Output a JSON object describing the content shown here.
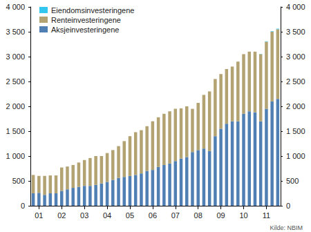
{
  "chart_data": {
    "type": "bar",
    "stacked": true,
    "grid": false,
    "legend": "top-left",
    "annotations": [
      "Kilde: NBIM"
    ],
    "categories": [
      null,
      "01",
      null,
      null,
      null,
      "02",
      null,
      null,
      null,
      "03",
      null,
      null,
      null,
      "04",
      null,
      null,
      null,
      "05",
      null,
      null,
      null,
      "06",
      null,
      null,
      null,
      "07",
      null,
      null,
      null,
      "08",
      null,
      null,
      null,
      "09",
      null,
      null,
      null,
      "10",
      null,
      null,
      null,
      "11",
      null,
      null
    ],
    "series": [
      {
        "name": "Aksjeinvesteringene",
        "color": "#4f7fb3",
        "values": [
          250,
          260,
          220,
          250,
          250,
          300,
          330,
          360,
          380,
          400,
          400,
          420,
          450,
          480,
          520,
          560,
          580,
          600,
          620,
          650,
          700,
          720,
          780,
          820,
          850,
          900,
          950,
          980,
          1080,
          1120,
          1150,
          1100,
          1400,
          1550,
          1650,
          1700,
          1700,
          1850,
          1900,
          1880,
          1700,
          1950,
          2100,
          2150
        ]
      },
      {
        "name": "Renteinvesteringene",
        "color": "#b3a272",
        "values": [
          370,
          340,
          380,
          360,
          360,
          470,
          460,
          460,
          490,
          520,
          560,
          580,
          550,
          580,
          600,
          640,
          720,
          800,
          860,
          870,
          900,
          980,
          1000,
          1030,
          1050,
          1050,
          1010,
          1020,
          870,
          950,
          1080,
          1200,
          1150,
          1100,
          1100,
          1100,
          1200,
          1200,
          1200,
          1220,
          1350,
          1350,
          1400,
          1400
        ]
      },
      {
        "name": "Eiendomsinvesteringene",
        "color": "#33c6ee",
        "values": [
          0,
          0,
          0,
          0,
          0,
          0,
          0,
          0,
          0,
          0,
          0,
          0,
          0,
          0,
          0,
          0,
          0,
          0,
          0,
          0,
          0,
          0,
          0,
          0,
          0,
          0,
          0,
          0,
          0,
          0,
          0,
          0,
          0,
          0,
          0,
          0,
          0,
          0,
          0,
          0,
          5,
          8,
          10,
          12
        ]
      }
    ],
    "ylim": [
      0,
      4000
    ],
    "yticks": [
      0,
      500,
      {
        "value": 1000,
        "label": "1 000"
      },
      {
        "value": 1500,
        "label": "1 500"
      },
      {
        "value": 2000,
        "label": "2 000"
      },
      {
        "value": 2500,
        "label": "2 500"
      },
      {
        "value": 3000,
        "label": "3 000"
      },
      {
        "value": 3500,
        "label": "3 500"
      },
      {
        "value": 4000,
        "label": "4 000"
      }
    ],
    "y2lim": [
      0,
      4000
    ],
    "y2ticks": [
      0,
      500,
      {
        "value": 1000,
        "label": "1 000"
      },
      {
        "value": 1500,
        "label": "1 500"
      },
      {
        "value": 2000,
        "label": "2 000"
      },
      {
        "value": 2500,
        "label": "2 500"
      },
      {
        "value": 3000,
        "label": "3 000"
      },
      {
        "value": 3500,
        "label": "3 500"
      },
      {
        "value": 4000,
        "label": "4 000"
      }
    ]
  }
}
